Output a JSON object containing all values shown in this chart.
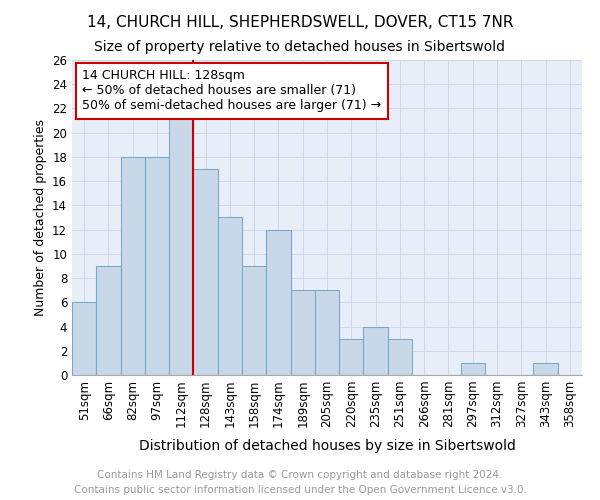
{
  "title": "14, CHURCH HILL, SHEPHERDSWELL, DOVER, CT15 7NR",
  "subtitle": "Size of property relative to detached houses in Sibertswold",
  "xlabel": "Distribution of detached houses by size in Sibertswold",
  "ylabel": "Number of detached properties",
  "categories": [
    "51sqm",
    "66sqm",
    "82sqm",
    "97sqm",
    "112sqm",
    "128sqm",
    "143sqm",
    "158sqm",
    "174sqm",
    "189sqm",
    "205sqm",
    "220sqm",
    "235sqm",
    "251sqm",
    "266sqm",
    "281sqm",
    "297sqm",
    "312sqm",
    "327sqm",
    "343sqm",
    "358sqm"
  ],
  "values": [
    6,
    9,
    18,
    18,
    22,
    17,
    13,
    9,
    12,
    7,
    7,
    3,
    4,
    3,
    0,
    0,
    1,
    0,
    0,
    1,
    0
  ],
  "bar_color": "#c8d8e8",
  "bar_edge_color": "#7aaac8",
  "vline_color": "#cc0000",
  "annotation_text": "14 CHURCH HILL: 128sqm\n← 50% of detached houses are smaller (71)\n50% of semi-detached houses are larger (71) →",
  "annotation_box_color": "#ffffff",
  "annotation_box_edge_color": "#cc0000",
  "ylim": [
    0,
    26
  ],
  "yticks": [
    0,
    2,
    4,
    6,
    8,
    10,
    12,
    14,
    16,
    18,
    20,
    22,
    24,
    26
  ],
  "grid_color": "#c8d4e8",
  "background_color": "#e8eef8",
  "footer_line1": "Contains HM Land Registry data © Crown copyright and database right 2024.",
  "footer_line2": "Contains public sector information licensed under the Open Government Licence v3.0.",
  "title_fontsize": 11,
  "subtitle_fontsize": 10,
  "xlabel_fontsize": 10,
  "ylabel_fontsize": 9,
  "tick_fontsize": 8.5,
  "annotation_fontsize": 9,
  "footer_fontsize": 7.5
}
